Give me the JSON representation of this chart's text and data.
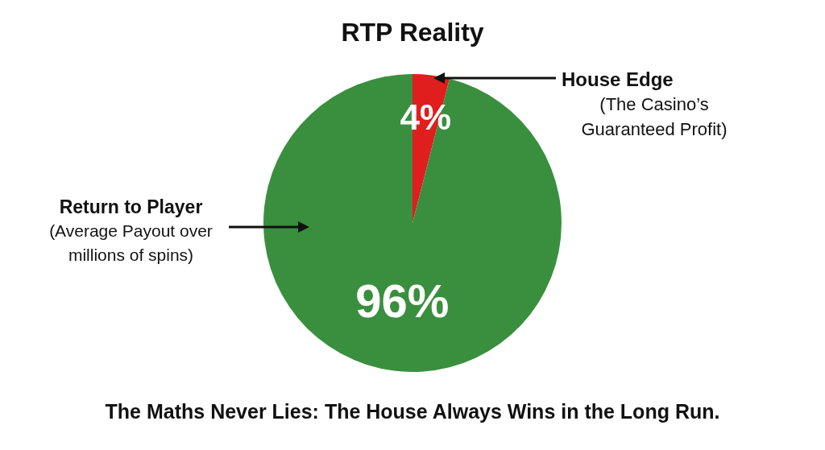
{
  "chart_data": {
    "type": "pie",
    "title": "RTP Reality",
    "categories": [
      "House Edge",
      "Return to Player"
    ],
    "values": [
      4,
      96
    ],
    "colors": [
      "#e01e1e",
      "#3a8f3e"
    ],
    "value_labels": [
      "4%",
      "96%"
    ],
    "annotations": [
      "(The Casino’s\nGuaranteed Profit)",
      "(Average Payout over\nmillions of spins)",
      "The Maths Never Lies: The House Always Wins in the Long Run."
    ],
    "legend": false
  }
}
